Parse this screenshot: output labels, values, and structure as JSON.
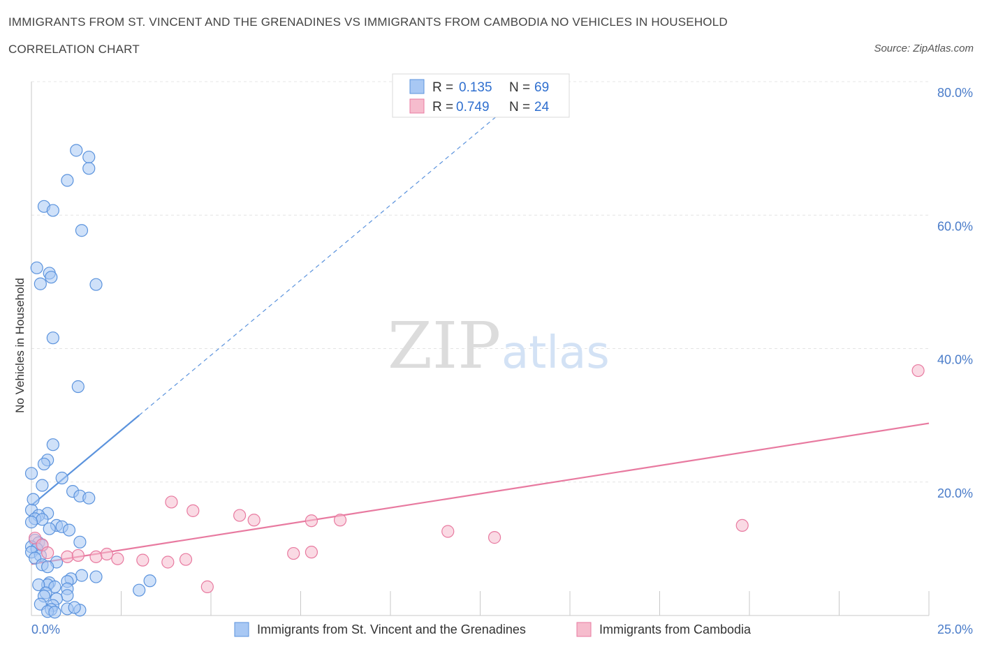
{
  "header": {
    "title": "IMMIGRANTS FROM ST. VINCENT AND THE GRENADINES VS IMMIGRANTS FROM CAMBODIA NO VEHICLES IN HOUSEHOLD",
    "subtitle": "CORRELATION CHART",
    "source": "Source: ZipAtlas.com"
  },
  "watermark": {
    "zip": "ZIP",
    "atlas": "atlas"
  },
  "legend": {
    "rows": [
      {
        "r_label": "R =",
        "r_value": "0.135",
        "n_label": "N =",
        "n_value": "69",
        "color": "#a8c8f4"
      },
      {
        "r_label": "R =",
        "r_value": "0.749",
        "n_label": "N =",
        "n_value": "24",
        "color": "#f6bccd"
      }
    ]
  },
  "bottom_legend": {
    "items": [
      {
        "label": "Immigrants from St. Vincent and the Grenadines",
        "color": "#a8c8f4"
      },
      {
        "label": "Immigrants from Cambodia",
        "color": "#f6bccd"
      }
    ]
  },
  "chart_data": {
    "type": "scatter",
    "ylabel": "No Vehicles in Household",
    "xlim": [
      0,
      25
    ],
    "ylim": [
      0,
      80
    ],
    "x_tick_labels": [
      "0.0%",
      "25.0%"
    ],
    "y_ticks": [
      20,
      40,
      60,
      80
    ],
    "y_tick_labels": [
      "20.0%",
      "40.0%",
      "60.0%",
      "80.0%"
    ],
    "grid": true,
    "series": [
      {
        "name": "Immigrants from St. Vincent and the Grenadines",
        "color": "#5b93dd",
        "fill": "#a8c8f4",
        "points": [
          [
            1.25,
            69.7
          ],
          [
            1.6,
            68.7
          ],
          [
            1.6,
            67.0
          ],
          [
            1.0,
            65.2
          ],
          [
            0.35,
            61.3
          ],
          [
            0.6,
            60.7
          ],
          [
            1.4,
            57.7
          ],
          [
            0.15,
            52.1
          ],
          [
            0.5,
            51.3
          ],
          [
            0.55,
            50.7
          ],
          [
            0.25,
            49.7
          ],
          [
            1.8,
            49.6
          ],
          [
            0.6,
            41.6
          ],
          [
            1.3,
            34.3
          ],
          [
            0.6,
            25.6
          ],
          [
            0.45,
            23.3
          ],
          [
            0.35,
            22.7
          ],
          [
            0.0,
            21.3
          ],
          [
            0.85,
            20.6
          ],
          [
            0.3,
            19.5
          ],
          [
            1.15,
            18.6
          ],
          [
            1.35,
            17.9
          ],
          [
            1.6,
            17.6
          ],
          [
            0.05,
            17.4
          ],
          [
            0.0,
            15.8
          ],
          [
            0.45,
            15.3
          ],
          [
            0.2,
            15.0
          ],
          [
            0.1,
            14.5
          ],
          [
            0.3,
            14.4
          ],
          [
            0.0,
            14.0
          ],
          [
            0.7,
            13.5
          ],
          [
            0.85,
            13.3
          ],
          [
            0.5,
            13.0
          ],
          [
            1.05,
            12.8
          ],
          [
            0.1,
            11.3
          ],
          [
            0.2,
            10.9
          ],
          [
            0.3,
            10.5
          ],
          [
            1.35,
            11.0
          ],
          [
            0.0,
            10.3
          ],
          [
            0.15,
            10.0
          ],
          [
            0.0,
            9.5
          ],
          [
            0.25,
            9.0
          ],
          [
            0.1,
            8.6
          ],
          [
            0.7,
            8.0
          ],
          [
            0.3,
            7.6
          ],
          [
            0.45,
            7.3
          ],
          [
            1.4,
            6.0
          ],
          [
            1.8,
            5.8
          ],
          [
            1.1,
            5.5
          ],
          [
            3.3,
            5.2
          ],
          [
            1.0,
            5.1
          ],
          [
            0.5,
            4.9
          ],
          [
            0.45,
            4.6
          ],
          [
            0.2,
            4.6
          ],
          [
            0.65,
            4.3
          ],
          [
            1.0,
            4.0
          ],
          [
            3.0,
            3.8
          ],
          [
            0.4,
            3.4
          ],
          [
            1.0,
            3.0
          ],
          [
            0.35,
            2.9
          ],
          [
            0.7,
            2.5
          ],
          [
            0.25,
            1.7
          ],
          [
            0.6,
            1.5
          ],
          [
            0.55,
            0.9
          ],
          [
            0.45,
            0.6
          ],
          [
            1.0,
            1.0
          ],
          [
            1.35,
            0.8
          ],
          [
            0.65,
            0.5
          ],
          [
            1.2,
            1.2
          ]
        ],
        "trend": {
          "x1": 0.0,
          "y1": 16.5,
          "x2": 3.0,
          "y2": 30.0,
          "dashed_to_x": 13.0,
          "dashed_to_y": 75.0
        }
      },
      {
        "name": "Immigrants from Cambodia",
        "color": "#e87aa0",
        "fill": "#f6bccd",
        "points": [
          [
            24.7,
            36.7
          ],
          [
            3.9,
            17.0
          ],
          [
            4.5,
            15.7
          ],
          [
            5.8,
            15.0
          ],
          [
            6.2,
            14.3
          ],
          [
            7.8,
            14.2
          ],
          [
            8.6,
            14.3
          ],
          [
            11.6,
            12.6
          ],
          [
            12.9,
            11.7
          ],
          [
            19.8,
            13.5
          ],
          [
            0.1,
            11.6
          ],
          [
            0.3,
            10.6
          ],
          [
            0.45,
            9.4
          ],
          [
            1.0,
            8.8
          ],
          [
            1.3,
            9.0
          ],
          [
            1.8,
            8.8
          ],
          [
            2.1,
            9.2
          ],
          [
            2.4,
            8.5
          ],
          [
            3.1,
            8.3
          ],
          [
            3.8,
            8.0
          ],
          [
            4.3,
            8.4
          ],
          [
            7.3,
            9.3
          ],
          [
            7.8,
            9.5
          ],
          [
            4.9,
            4.3
          ]
        ],
        "trend": {
          "x1": 0.0,
          "y1": 7.7,
          "x2": 25.0,
          "y2": 28.8
        }
      }
    ]
  }
}
